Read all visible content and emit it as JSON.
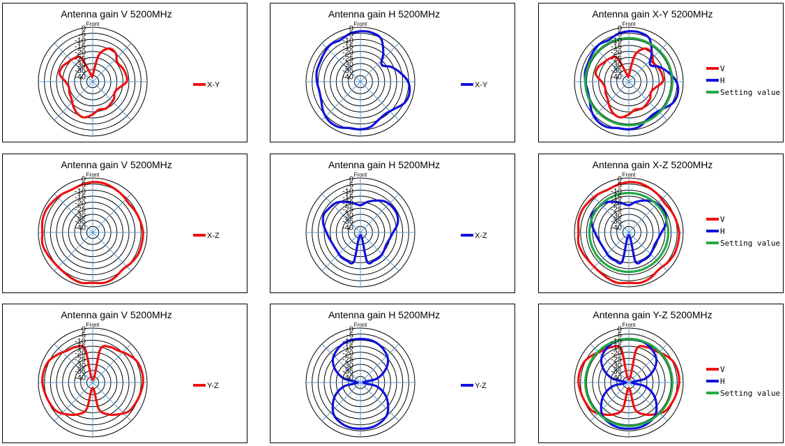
{
  "colors": {
    "V": "#ee1111",
    "H": "#1111dd",
    "Setting value": "#22aa44",
    "spoke": "#5b9bd5",
    "ring": "#000000"
  },
  "chart_data": [
    {
      "type": "polar",
      "title": "Antenna gain V  5200MHz",
      "angle_label": "Front",
      "r_ticks": [
        "0",
        "-5",
        "-10",
        "-15",
        "-20",
        "-25",
        "-30",
        "-35",
        "-40"
      ],
      "r_range": [
        -40,
        0
      ],
      "legend": [
        {
          "name": "X-Y",
          "color": "#ee1111"
        }
      ],
      "series": [
        {
          "name": "X-Y",
          "color": "#ee1111",
          "gain_dB": [
            -35,
            -20,
            -13,
            -13,
            -17,
            -16,
            -15,
            -15,
            -20,
            -22,
            -20,
            -19,
            -18,
            -19,
            -16,
            -13,
            -14,
            -17,
            -20,
            -21,
            -22,
            -20,
            -15,
            -15,
            -17,
            -18,
            -21,
            -35
          ]
        }
      ]
    },
    {
      "type": "polar",
      "title": "Antenna gain H 5200MHz",
      "angle_label": "Front",
      "r_ticks": [
        "0",
        "-5",
        "-10",
        "-15",
        "-20",
        "-25",
        "-30",
        "-35",
        "-40"
      ],
      "r_range": [
        -40,
        0
      ],
      "legend": [
        {
          "name": "X-Y",
          "color": "#1111dd"
        }
      ],
      "series": [
        {
          "name": "X-Y",
          "color": "#1111dd",
          "gain_dB": [
            -3,
            -3,
            -5,
            -13,
            -20,
            -15,
            -10,
            -5,
            -3,
            -4,
            -8,
            -10,
            -9,
            -6,
            -5,
            -5,
            -3,
            -3,
            -5,
            -8,
            -9,
            -8,
            -7,
            -7,
            -6,
            -5,
            -6,
            -4
          ]
        }
      ]
    },
    {
      "type": "polar",
      "title": "Antenna gain X-Y  5200MHz",
      "angle_label": "Front",
      "r_ticks": [
        "0",
        "-5",
        "-10",
        "-15",
        "-20",
        "-25",
        "-30",
        "-35",
        "-40"
      ],
      "r_range": [
        -40,
        0
      ],
      "legend": [
        {
          "name": "V",
          "color": "#ee1111"
        },
        {
          "name": "H",
          "color": "#1111dd"
        },
        {
          "name": "Setting value",
          "color": "#22aa44"
        }
      ],
      "series": [
        {
          "name": "V",
          "color": "#ee1111",
          "gain_dB": [
            -35,
            -20,
            -13,
            -13,
            -17,
            -16,
            -15,
            -15,
            -20,
            -22,
            -20,
            -19,
            -18,
            -19,
            -16,
            -13,
            -14,
            -17,
            -20,
            -21,
            -22,
            -20,
            -15,
            -15,
            -17,
            -18,
            -21,
            -35
          ]
        },
        {
          "name": "H",
          "color": "#1111dd",
          "gain_dB": [
            -3,
            -3,
            -5,
            -13,
            -20,
            -15,
            -10,
            -5,
            -3,
            -4,
            -8,
            -10,
            -9,
            -6,
            -5,
            -5,
            -3,
            -3,
            -5,
            -8,
            -9,
            -8,
            -7,
            -7,
            -6,
            -5,
            -6,
            -4
          ]
        },
        {
          "name": "Setting value",
          "color": "#22aa44",
          "gain_dB": [
            -8,
            -8,
            -8,
            -8,
            -8,
            -8,
            -8,
            -8,
            -8,
            -8,
            -8,
            -8,
            -8,
            -8,
            -8,
            -8,
            -8,
            -8,
            -8,
            -8,
            -8,
            -8,
            -8,
            -8,
            -8,
            -8,
            -8,
            -8
          ]
        }
      ]
    },
    {
      "type": "polar",
      "title": "Antenna gain V 5200MHz",
      "angle_label": "Front",
      "r_ticks": [
        "0",
        "-5",
        "-10",
        "-15",
        "-20",
        "-25",
        "-30",
        "-35",
        "-40"
      ],
      "r_range": [
        -40,
        0
      ],
      "legend": [
        {
          "name": "X-Z",
          "color": "#ee1111"
        }
      ],
      "series": [
        {
          "name": "X-Z",
          "color": "#ee1111",
          "gain_dB": [
            -3,
            -3,
            -4,
            -5,
            -6,
            -5,
            -4,
            -3,
            -3,
            -3,
            -4,
            -5,
            -3,
            -2,
            -3,
            -2,
            -3,
            -4,
            -4,
            -3,
            -2,
            -3,
            -2,
            -2,
            -3,
            -4,
            -5,
            -4
          ]
        }
      ]
    },
    {
      "type": "polar",
      "title": "Antenna gain H 5200MHz",
      "angle_label": "Front",
      "r_ticks": [
        "0",
        "-5",
        "-10",
        "-15",
        "-20",
        "-25",
        "-30",
        "-35",
        "-40"
      ],
      "r_range": [
        -40,
        0
      ],
      "legend": [
        {
          "name": "X-Z",
          "color": "#1111dd"
        }
      ],
      "series": [
        {
          "name": "X-Z",
          "color": "#1111dd",
          "gain_dB": [
            -20,
            -17,
            -14,
            -11,
            -10,
            -10,
            -12,
            -16,
            -18,
            -19,
            -18,
            -17,
            -17,
            -18,
            -38,
            -18,
            -17,
            -17,
            -18,
            -18,
            -17,
            -15,
            -12,
            -10,
            -11,
            -12,
            -15,
            -18
          ]
        }
      ]
    },
    {
      "type": "polar",
      "title": "Antenna gain X-Z  5200MHz",
      "angle_label": "Front",
      "r_ticks": [
        "0",
        "-5",
        "-10",
        "-15",
        "-20",
        "-25",
        "-30",
        "-35",
        "-40"
      ],
      "r_range": [
        -40,
        0
      ],
      "legend": [
        {
          "name": "V",
          "color": "#ee1111"
        },
        {
          "name": "H",
          "color": "#1111dd"
        },
        {
          "name": "Setting value",
          "color": "#22aa44"
        }
      ],
      "series": [
        {
          "name": "V",
          "color": "#ee1111",
          "gain_dB": [
            -3,
            -3,
            -4,
            -5,
            -6,
            -5,
            -4,
            -3,
            -3,
            -3,
            -4,
            -5,
            -3,
            -2,
            -3,
            -2,
            -3,
            -4,
            -4,
            -3,
            -2,
            -3,
            -2,
            -2,
            -3,
            -4,
            -5,
            -4
          ]
        },
        {
          "name": "H",
          "color": "#1111dd",
          "gain_dB": [
            -20,
            -17,
            -14,
            -11,
            -10,
            -10,
            -12,
            -16,
            -18,
            -19,
            -18,
            -17,
            -17,
            -18,
            -38,
            -18,
            -17,
            -17,
            -18,
            -18,
            -17,
            -15,
            -12,
            -10,
            -11,
            -12,
            -15,
            -18
          ]
        },
        {
          "name": "Setting value",
          "color": "#22aa44",
          "gain_dB": [
            -11,
            -11,
            -11,
            -11,
            -11,
            -11,
            -11,
            -11,
            -11,
            -11,
            -11,
            -11,
            -11,
            -11,
            -11,
            -11,
            -11,
            -11,
            -11,
            -11,
            -11,
            -11,
            -11,
            -11,
            -11,
            -11,
            -11,
            -11
          ]
        }
      ]
    },
    {
      "type": "polar",
      "title": "Antenna gain V 5200MHz",
      "angle_label": "Front",
      "r_ticks": [
        "0",
        "-5",
        "-10",
        "-15",
        "-20",
        "-25",
        "-30",
        "-35",
        "-40"
      ],
      "r_range": [
        -40,
        0
      ],
      "legend": [
        {
          "name": "Y-Z",
          "color": "#ee1111"
        }
      ],
      "series": [
        {
          "name": "Y-Z",
          "color": "#ee1111",
          "gain_dB": [
            -38,
            -15,
            -11,
            -10,
            -7,
            -4,
            -3,
            -3,
            -4,
            -5,
            -6,
            -10,
            -14,
            -20,
            -36,
            -20,
            -14,
            -10,
            -6,
            -5,
            -4,
            -3,
            -3,
            -4,
            -7,
            -10,
            -11,
            -15
          ]
        }
      ]
    },
    {
      "type": "polar",
      "title": "Antenna gain H 5200MHz",
      "angle_label": "Front",
      "r_ticks": [
        "0",
        "-5",
        "-10",
        "-15",
        "-20",
        "-25",
        "-30",
        "-35",
        "-40"
      ],
      "r_range": [
        -40,
        0
      ],
      "legend": [
        {
          "name": "Y-Z",
          "color": "#1111dd"
        }
      ],
      "series": [
        {
          "name": "Y-Z",
          "color": "#1111dd",
          "gain_dB": [
            -8,
            -8,
            -9,
            -11,
            -14,
            -20,
            -28,
            -38,
            -28,
            -20,
            -14,
            -9,
            -7,
            -6,
            -6,
            -6,
            -7,
            -9,
            -14,
            -20,
            -28,
            -38,
            -28,
            -20,
            -14,
            -11,
            -9,
            -8
          ]
        }
      ]
    },
    {
      "type": "polar",
      "title": "Antenna gain Y-Z  5200MHz",
      "angle_label": "Front",
      "r_ticks": [
        "0",
        "-5",
        "-10",
        "-15",
        "-20",
        "-25",
        "-30",
        "-35",
        "-40"
      ],
      "r_range": [
        -40,
        0
      ],
      "legend": [
        {
          "name": "V",
          "color": "#ee1111"
        },
        {
          "name": "H",
          "color": "#1111dd"
        },
        {
          "name": "Setting value",
          "color": "#22aa44"
        }
      ],
      "series": [
        {
          "name": "V",
          "color": "#ee1111",
          "gain_dB": [
            -38,
            -15,
            -11,
            -10,
            -7,
            -4,
            -3,
            -3,
            -4,
            -5,
            -6,
            -10,
            -14,
            -20,
            -36,
            -20,
            -14,
            -10,
            -6,
            -5,
            -4,
            -3,
            -3,
            -4,
            -7,
            -10,
            -11,
            -15
          ]
        },
        {
          "name": "H",
          "color": "#1111dd",
          "gain_dB": [
            -8,
            -8,
            -9,
            -11,
            -14,
            -20,
            -28,
            -38,
            -28,
            -20,
            -14,
            -9,
            -7,
            -6,
            -6,
            -6,
            -7,
            -9,
            -14,
            -20,
            -28,
            -38,
            -28,
            -20,
            -14,
            -11,
            -9,
            -8
          ]
        },
        {
          "name": "Setting value",
          "color": "#22aa44",
          "gain_dB": [
            -8,
            -8,
            -8,
            -8,
            -8,
            -8,
            -8,
            -8,
            -8,
            -8,
            -8,
            -8,
            -8,
            -8,
            -8,
            -8,
            -8,
            -8,
            -8,
            -8,
            -8,
            -8,
            -8,
            -8,
            -8,
            -8,
            -8,
            -8
          ]
        }
      ]
    }
  ]
}
